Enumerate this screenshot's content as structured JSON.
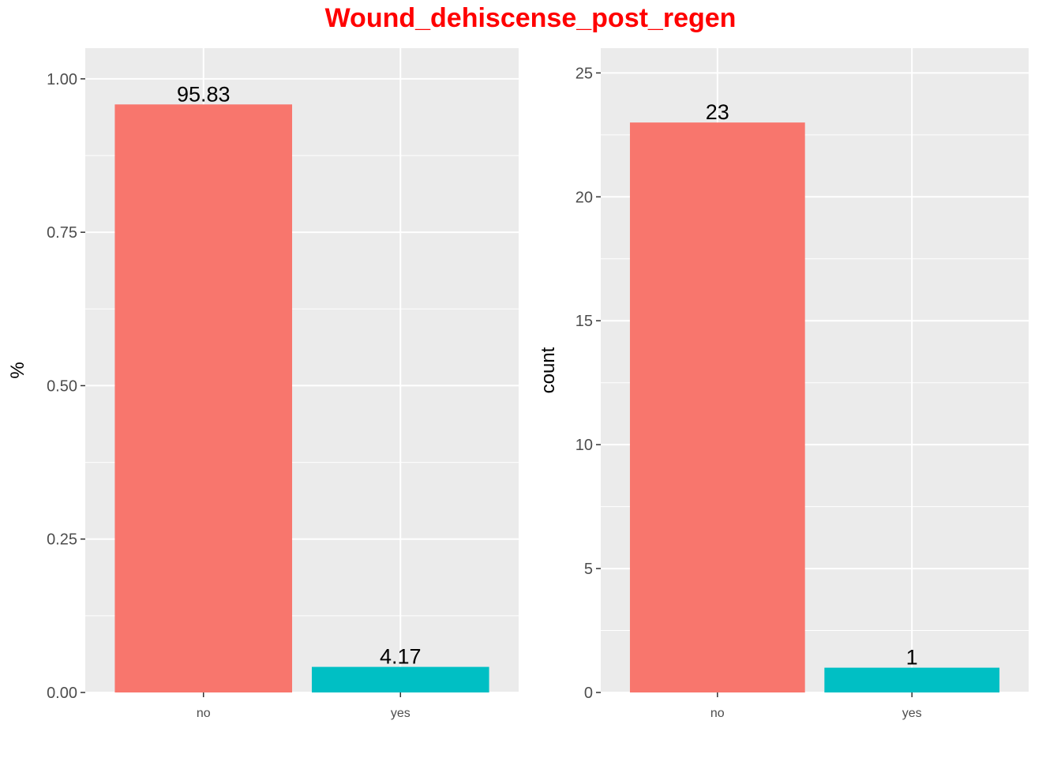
{
  "title": "Wound_dehiscense_post_regen",
  "colors": {
    "title": "#ff0000",
    "panel_background": "#ebebeb",
    "grid": "#ffffff",
    "no": "#f8766d",
    "yes": "#00bfc4"
  },
  "chart_data": [
    {
      "type": "bar",
      "categories": [
        "no",
        "yes"
      ],
      "values": [
        0.9583,
        0.0417
      ],
      "data_labels": [
        "95.83",
        "4.17"
      ],
      "ylabel": "%",
      "ylim": [
        0,
        1.05
      ],
      "yticks": [
        0,
        0.25,
        0.5,
        0.75,
        1.0
      ],
      "ytick_labels": [
        "0.00",
        "0.25",
        "0.50",
        "0.75",
        "1.00"
      ],
      "grid": true
    },
    {
      "type": "bar",
      "categories": [
        "no",
        "yes"
      ],
      "values": [
        23,
        1
      ],
      "data_labels": [
        "23",
        "1"
      ],
      "ylabel": "count",
      "ylim": [
        0,
        26
      ],
      "yticks": [
        0,
        5,
        10,
        15,
        20,
        25
      ],
      "ytick_labels": [
        "0",
        "5",
        "10",
        "15",
        "20",
        "25"
      ],
      "grid": true
    }
  ]
}
